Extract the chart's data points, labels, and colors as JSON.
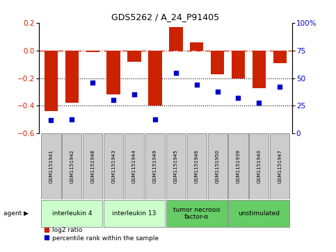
{
  "title": "GDS5262 / A_24_P91405",
  "samples": [
    "GSM1151941",
    "GSM1151942",
    "GSM1151948",
    "GSM1151943",
    "GSM1151944",
    "GSM1151949",
    "GSM1151945",
    "GSM1151946",
    "GSM1151950",
    "GSM1151939",
    "GSM1151940",
    "GSM1151947"
  ],
  "log2_ratio": [
    -0.44,
    -0.38,
    -0.01,
    -0.32,
    -0.08,
    -0.4,
    0.17,
    0.06,
    -0.17,
    -0.2,
    -0.27,
    -0.09
  ],
  "percentile": [
    12,
    13,
    46,
    30,
    35,
    13,
    55,
    44,
    38,
    32,
    28,
    42
  ],
  "agents": [
    {
      "label": "interleukin 4",
      "samples": [
        0,
        1,
        2
      ],
      "color": "#ccffcc"
    },
    {
      "label": "interleukin 13",
      "samples": [
        3,
        4,
        5
      ],
      "color": "#ccffcc"
    },
    {
      "label": "tumor necrosis\nfactor-α",
      "samples": [
        6,
        7,
        8
      ],
      "color": "#66cc66"
    },
    {
      "label": "unstimulated",
      "samples": [
        9,
        10,
        11
      ],
      "color": "#66cc66"
    }
  ],
  "bar_color": "#cc2200",
  "dot_color": "#0000cc",
  "ylim_left": [
    -0.6,
    0.2
  ],
  "ylim_right": [
    0,
    100
  ],
  "yticks_left": [
    -0.6,
    -0.4,
    -0.2,
    0.0,
    0.2
  ],
  "yticks_right": [
    0,
    25,
    50,
    75,
    100
  ],
  "ytick_labels_right": [
    "0",
    "25",
    "50",
    "75",
    "100%"
  ],
  "hline_y": 0,
  "dotted_lines": [
    -0.2,
    -0.4
  ],
  "background_color": "#ffffff",
  "plot_bg_color": "#ffffff",
  "sample_box_color": "#cccccc",
  "agent_box_color_light": "#ccffcc",
  "agent_box_color_dark": "#66cc66",
  "group_boundaries": [
    2.5,
    5.5,
    8.5
  ]
}
